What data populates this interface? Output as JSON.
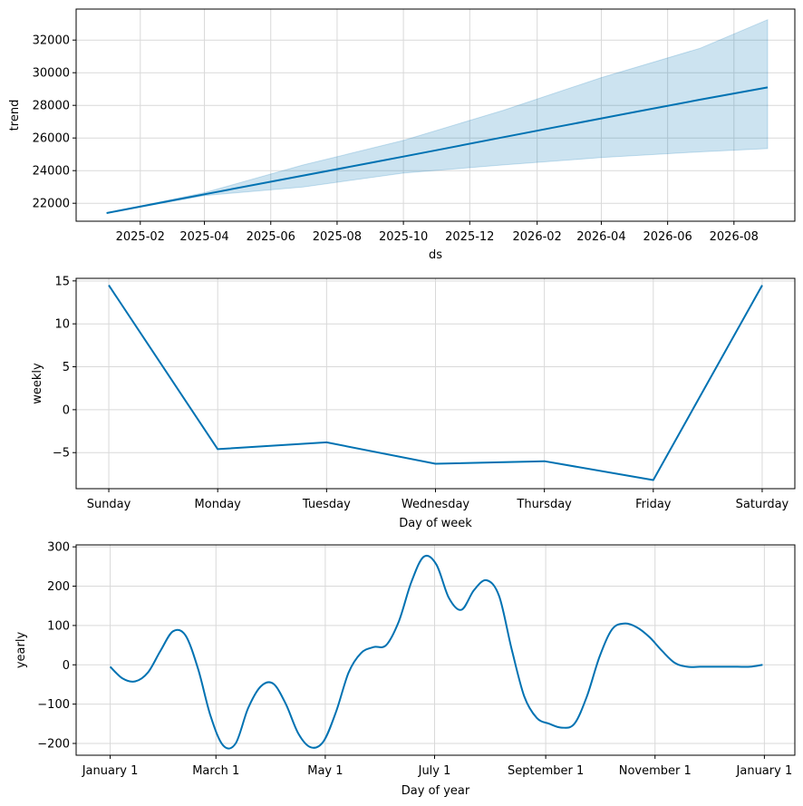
{
  "chart_data": [
    {
      "type": "area",
      "xlabel": "ds",
      "ylabel": "trend",
      "x_type": "date",
      "xlim": [
        "2024-12-04",
        "2026-09-26"
      ],
      "ylim": [
        20900,
        33900
      ],
      "grid": true,
      "colors": {
        "line": "#0072B2",
        "band": "#0072B2"
      },
      "x_ticks": [
        {
          "value": "2025-02-01",
          "label": "2025-02"
        },
        {
          "value": "2025-04-01",
          "label": "2025-04"
        },
        {
          "value": "2025-06-01",
          "label": "2025-06"
        },
        {
          "value": "2025-08-01",
          "label": "2025-08"
        },
        {
          "value": "2025-10-01",
          "label": "2025-10"
        },
        {
          "value": "2025-12-01",
          "label": "2025-12"
        },
        {
          "value": "2026-02-01",
          "label": "2026-02"
        },
        {
          "value": "2026-04-01",
          "label": "2026-04"
        },
        {
          "value": "2026-06-01",
          "label": "2026-06"
        },
        {
          "value": "2026-08-01",
          "label": "2026-08"
        }
      ],
      "y_ticks": [
        22000,
        24000,
        26000,
        28000,
        30000,
        32000
      ],
      "series": [
        {
          "x": [
            "2025-01-01",
            "2025-04-01",
            "2025-07-01",
            "2025-10-01",
            "2026-01-01",
            "2026-04-01",
            "2026-07-01",
            "2026-09-01"
          ],
          "y": [
            21400,
            22550,
            23700,
            24860,
            26050,
            27200,
            28350,
            29100
          ],
          "lower": [
            21400,
            22470,
            23000,
            23850,
            24350,
            24800,
            25150,
            25350
          ],
          "upper": [
            21400,
            22650,
            24350,
            25850,
            27700,
            29700,
            31500,
            33250
          ]
        }
      ]
    },
    {
      "type": "line",
      "xlabel": "Day of week",
      "ylabel": "weekly",
      "ylim": [
        -9.2,
        15.3
      ],
      "grid": true,
      "colors": {
        "line": "#0072B2"
      },
      "categories": [
        "Sunday",
        "Monday",
        "Tuesday",
        "Wednesday",
        "Thursday",
        "Friday",
        "Saturday"
      ],
      "y_ticks": [
        -5,
        0,
        5,
        10,
        15
      ],
      "y_tick_labels": [
        "−5",
        "0",
        "5",
        "10",
        "15"
      ],
      "series": [
        {
          "values": [
            14.5,
            -4.6,
            -3.8,
            -6.3,
            -6.0,
            -8.2,
            14.5
          ]
        }
      ]
    },
    {
      "type": "line",
      "xlabel": "Day of year",
      "ylabel": "yearly",
      "x_type": "date",
      "xlim": [
        "2016-12-13",
        "2018-01-18"
      ],
      "ylim": [
        -230,
        305
      ],
      "grid": true,
      "colors": {
        "line": "#0072B2"
      },
      "x_ticks": [
        {
          "value": "2017-01-01",
          "label": "January 1"
        },
        {
          "value": "2017-03-01",
          "label": "March 1"
        },
        {
          "value": "2017-05-01",
          "label": "May 1"
        },
        {
          "value": "2017-07-01",
          "label": "July 1"
        },
        {
          "value": "2017-09-01",
          "label": "September 1"
        },
        {
          "value": "2017-11-01",
          "label": "November 1"
        },
        {
          "value": "2018-01-01",
          "label": "January 1"
        }
      ],
      "y_ticks": [
        -200,
        -100,
        0,
        100,
        200,
        300
      ],
      "y_tick_labels": [
        "−200",
        "−100",
        "0",
        "100",
        "200",
        "300"
      ],
      "series": [
        {
          "x": [
            "2017-01-01",
            "2017-01-08",
            "2017-01-15",
            "2017-01-22",
            "2017-01-29",
            "2017-02-05",
            "2017-02-12",
            "2017-02-19",
            "2017-02-26",
            "2017-03-05",
            "2017-03-12",
            "2017-03-19",
            "2017-03-26",
            "2017-04-02",
            "2017-04-09",
            "2017-04-16",
            "2017-04-23",
            "2017-04-30",
            "2017-05-07",
            "2017-05-14",
            "2017-05-21",
            "2017-05-28",
            "2017-06-04",
            "2017-06-11",
            "2017-06-18",
            "2017-06-25",
            "2017-07-02",
            "2017-07-09",
            "2017-07-16",
            "2017-07-23",
            "2017-07-30",
            "2017-08-06",
            "2017-08-13",
            "2017-08-20",
            "2017-08-27",
            "2017-09-03",
            "2017-09-10",
            "2017-09-17",
            "2017-09-24",
            "2017-10-01",
            "2017-10-08",
            "2017-10-15",
            "2017-10-22",
            "2017-10-29",
            "2017-11-05",
            "2017-11-12",
            "2017-11-19",
            "2017-11-26",
            "2017-12-03",
            "2017-12-10",
            "2017-12-17",
            "2017-12-24",
            "2017-12-31"
          ],
          "y": [
            -5,
            -35,
            -42,
            -20,
            35,
            85,
            75,
            -10,
            -130,
            -205,
            -200,
            -110,
            -55,
            -48,
            -100,
            -175,
            -210,
            -195,
            -120,
            -20,
            30,
            45,
            50,
            110,
            210,
            275,
            255,
            170,
            140,
            190,
            215,
            175,
            40,
            -80,
            -135,
            -150,
            -160,
            -150,
            -80,
            20,
            90,
            105,
            95,
            70,
            35,
            5,
            -5,
            -5,
            -5,
            -5,
            -5,
            -5,
            0
          ]
        }
      ]
    }
  ]
}
